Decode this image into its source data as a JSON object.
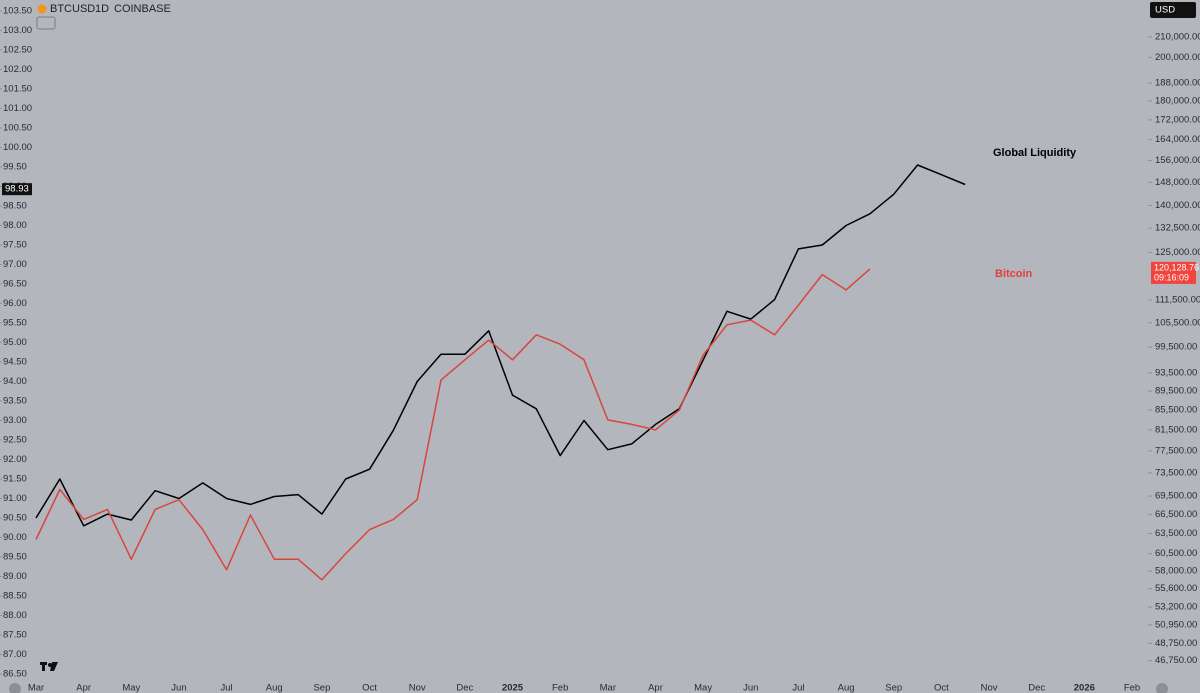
{
  "chart_data": {
    "type": "line",
    "title": "BTCUSD",
    "interval": "1D",
    "exchange": "COINBASE",
    "currency": "USD",
    "annotations": [
      {
        "text": "Global Liquidity",
        "color": "#000000"
      },
      {
        "text": "Bitcoin",
        "color": "#e0403a"
      }
    ],
    "categories": [
      "Mar",
      null,
      "Apr",
      null,
      "May",
      null,
      "Jun",
      null,
      "Jul",
      null,
      "Aug",
      null,
      "Sep",
      null,
      "Oct",
      null,
      "Nov",
      null,
      "Dec",
      null,
      "2025",
      null,
      "Feb",
      null,
      "Mar",
      null,
      "Apr",
      null,
      "May",
      null,
      "Jun",
      null,
      "Jul",
      null,
      "Aug",
      null,
      "Sep",
      null,
      "Oct",
      null,
      "Nov",
      null,
      "Dec",
      null,
      "2026",
      null,
      "Feb"
    ],
    "series": [
      {
        "name": "Global Liquidity",
        "color": "#000000",
        "axis": "y",
        "values": [
          90.5,
          91.5,
          90.3,
          90.6,
          90.45,
          91.2,
          91.0,
          91.4,
          91.0,
          90.85,
          91.05,
          91.1,
          90.6,
          91.5,
          91.75,
          92.75,
          94.0,
          94.7,
          94.7,
          95.3,
          93.65,
          93.3,
          92.1,
          93.0,
          92.25,
          92.4,
          92.9,
          93.3,
          94.55,
          95.8,
          95.6,
          96.1,
          97.4,
          97.5,
          98.0,
          98.3,
          98.8,
          99.55,
          99.3,
          99.05,
          null,
          null,
          null,
          null,
          null,
          null,
          null
        ]
      },
      {
        "name": "Bitcoin",
        "color": "#d9453f",
        "axis": "y2",
        "values": [
          62600,
          70600,
          65700,
          67300,
          59700,
          67300,
          68900,
          64100,
          58200,
          66400,
          59700,
          59700,
          56800,
          60500,
          64100,
          65700,
          68900,
          91900,
          96500,
          101200,
          96500,
          102500,
          100200,
          96500,
          83500,
          82600,
          81500,
          85500,
          97600,
          105000,
          106200,
          102500,
          110100,
          118500,
          114200,
          120128.76,
          null,
          null,
          null,
          null,
          null,
          null,
          null,
          null,
          null,
          null,
          null
        ]
      }
    ],
    "ylim": [
      86.27,
      103.78
    ],
    "yticks": [
      {
        "value": 86.5,
        "label": "86.50"
      },
      {
        "value": 87,
        "label": "87.00"
      },
      {
        "value": 87.5,
        "label": "87.50"
      },
      {
        "value": 88,
        "label": "88.00"
      },
      {
        "value": 88.5,
        "label": "88.50"
      },
      {
        "value": 89,
        "label": "89.00"
      },
      {
        "value": 89.5,
        "label": "89.50"
      },
      {
        "value": 90,
        "label": "90.00"
      },
      {
        "value": 90.5,
        "label": "90.50"
      },
      {
        "value": 91,
        "label": "91.00"
      },
      {
        "value": 91.5,
        "label": "91.50"
      },
      {
        "value": 92,
        "label": "92.00"
      },
      {
        "value": 92.5,
        "label": "92.50"
      },
      {
        "value": 93,
        "label": "93.00"
      },
      {
        "value": 93.5,
        "label": "93.50"
      },
      {
        "value": 94,
        "label": "94.00"
      },
      {
        "value": 94.5,
        "label": "94.50"
      },
      {
        "value": 95,
        "label": "95.00"
      },
      {
        "value": 95.5,
        "label": "95.50"
      },
      {
        "value": 96,
        "label": "96.00"
      },
      {
        "value": 96.5,
        "label": "96.50"
      },
      {
        "value": 97,
        "label": "97.00"
      },
      {
        "value": 97.5,
        "label": "97.50"
      },
      {
        "value": 98,
        "label": "98.00"
      },
      {
        "value": 98.5,
        "label": "98.50"
      },
      {
        "value": 99,
        "label": "99.00"
      },
      {
        "value": 99.5,
        "label": "99.50"
      },
      {
        "value": 100,
        "label": "100.00"
      },
      {
        "value": 100.5,
        "label": "100.50"
      },
      {
        "value": 101,
        "label": "101.00"
      },
      {
        "value": 101.5,
        "label": "101.50"
      },
      {
        "value": 102,
        "label": "102.00"
      },
      {
        "value": 102.5,
        "label": "102.50"
      },
      {
        "value": 103,
        "label": "103.00"
      },
      {
        "value": 103.5,
        "label": "103.50"
      }
    ],
    "y2lim": [
      44300,
      229600
    ],
    "y2log": true,
    "y2ticks": [
      {
        "value": 46750,
        "label": "46,750.00"
      },
      {
        "value": 48750,
        "label": "48,750.00"
      },
      {
        "value": 50950,
        "label": "50,950.00"
      },
      {
        "value": 53200,
        "label": "53,200.00"
      },
      {
        "value": 55600,
        "label": "55,600.00"
      },
      {
        "value": 58000,
        "label": "58,000.00"
      },
      {
        "value": 60500,
        "label": "60,500.00"
      },
      {
        "value": 63500,
        "label": "63,500.00"
      },
      {
        "value": 66500,
        "label": "66,500.00"
      },
      {
        "value": 69500,
        "label": "69,500.00"
      },
      {
        "value": 73500,
        "label": "73,500.00"
      },
      {
        "value": 77500,
        "label": "77,500.00"
      },
      {
        "value": 81500,
        "label": "81,500.00"
      },
      {
        "value": 85500,
        "label": "85,500.00"
      },
      {
        "value": 89500,
        "label": "89,500.00"
      },
      {
        "value": 93500,
        "label": "93,500.00"
      },
      {
        "value": 99500,
        "label": "99,500.00"
      },
      {
        "value": 105500,
        "label": "105,500.00"
      },
      {
        "value": 111500,
        "label": "111,500.00"
      },
      {
        "value": 125000,
        "label": "125,000.00"
      },
      {
        "value": 132500,
        "label": "132,500.00"
      },
      {
        "value": 140000,
        "label": "140,000.00"
      },
      {
        "value": 148000,
        "label": "148,000.00"
      },
      {
        "value": 156000,
        "label": "156,000.00"
      },
      {
        "value": 164000,
        "label": "164,000.00"
      },
      {
        "value": 172000,
        "label": "172,000.00"
      },
      {
        "value": 180000,
        "label": "180,000.00"
      },
      {
        "value": 188000,
        "label": "188,000.00"
      },
      {
        "value": 200000,
        "label": "200,000.00"
      },
      {
        "value": 210000,
        "label": "210,000.00"
      }
    ],
    "y_last": {
      "value": 98.93,
      "label": "98.93"
    },
    "y2_last": {
      "value": 120128.76,
      "label": "120,128.76"
    },
    "countdown": "09:16:09",
    "grid": false
  }
}
